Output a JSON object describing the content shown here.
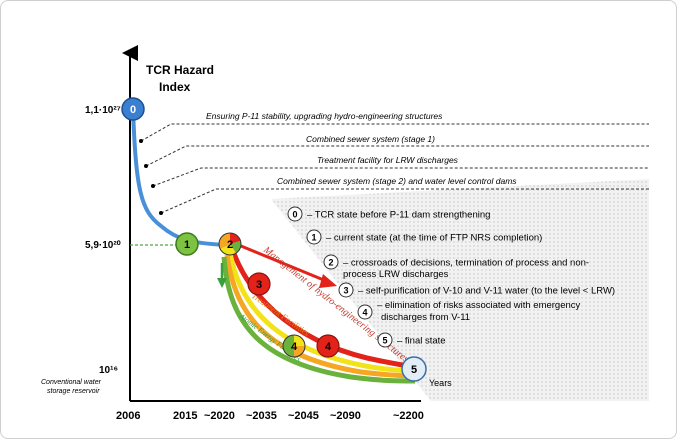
{
  "axis": {
    "y_title_line1": "TCR Hazard",
    "y_title_line2": "Index",
    "y_ticks": [
      "1,1·10²⁷",
      "5,9·10²⁰",
      "10¹⁶"
    ],
    "y_bottom_note_line1": "Conventional water",
    "y_bottom_note_line2": "storage reservoir",
    "x_unit": "Years",
    "x_ticks": [
      "2006",
      "2015",
      "~2020",
      "~2035",
      "~2045",
      "~2090",
      "~2200"
    ]
  },
  "measures": [
    "Ensuring P-11 stability, upgrading hydro-engineering structures",
    "Combined sewer system (stage 1)",
    "Treatment facility for LRW discharges",
    "Combined sewer system (stage 2) and water level control dams"
  ],
  "path_labels": {
    "red": "Management of hydro-engineering structures",
    "orange": "Treatment Facilities",
    "green": "Atomic Energy Facilities"
  },
  "states": [
    "0",
    "1",
    "2",
    "3",
    "4",
    "4",
    "5"
  ],
  "legend": [
    {
      "num": "0",
      "lines": [
        "– TCR state before P-11 dam strengthening"
      ]
    },
    {
      "num": "1",
      "lines": [
        "– current state (at the time of FTP NRS completion)"
      ]
    },
    {
      "num": "2",
      "lines": [
        "– crossroads of decisions, termination of process and non-",
        "process LRW discharges"
      ]
    },
    {
      "num": "3",
      "lines": [
        "– self-purification of V-10 and V-11 water (to the level < LRW)"
      ]
    },
    {
      "num": "4",
      "lines": [
        "– elimination of risks associated with emergency",
        "discharges from V-11"
      ]
    },
    {
      "num": "5",
      "lines": [
        "– final state"
      ]
    }
  ],
  "colors": {
    "blue_curve": "#4a90d9",
    "red_path": "#e32219",
    "orange_path": "#f5a623",
    "green_path": "#6ab23b",
    "yellow_path": "#f2e21a",
    "state0_fill": "#3b7fd1",
    "state1_fill": "#7dc242",
    "state5_fill": "#e3edf7",
    "shade": "#e5e5e5"
  }
}
